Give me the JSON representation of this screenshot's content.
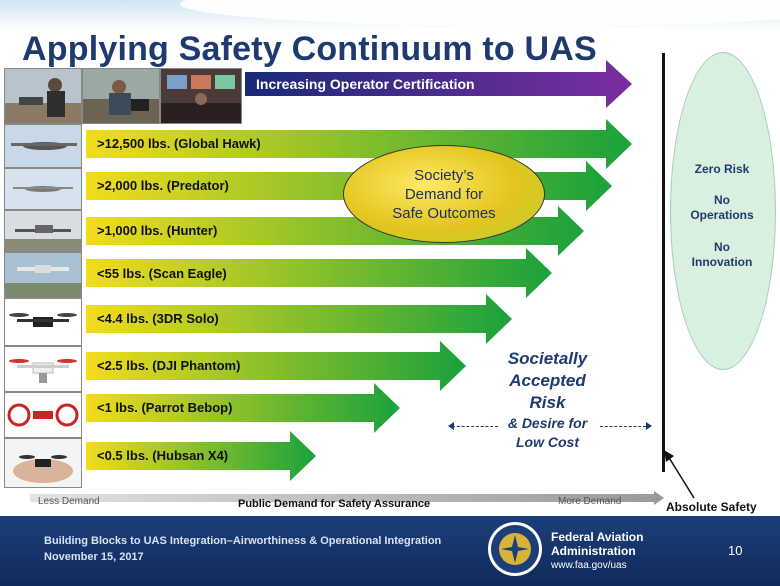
{
  "title": "Applying Safety Continuum to UAS",
  "certification_label": "Increasing Operator Certification",
  "aircraft": [
    {
      "label": ">12,500 lbs. (Global Hawk)"
    },
    {
      "label": ">2,000 lbs. (Predator)"
    },
    {
      "label": ">1,000 lbs. (Hunter)"
    },
    {
      "label": "<55 lbs. (Scan Eagle)"
    },
    {
      "label": "<4.4 lbs. (3DR Solo)"
    },
    {
      "label": "<2.5 lbs. (DJI Phantom)"
    },
    {
      "label": "<1 lbs. (Parrot Bebop)"
    },
    {
      "label": "<0.5 lbs. (Hubsan X4)"
    }
  ],
  "demand_oval": {
    "line1": "Society’s",
    "line2": "Demand for",
    "line3": "Safe Outcomes"
  },
  "zero_risk": {
    "line1": "Zero Risk",
    "line2a": "No",
    "line2b": "Operations",
    "line3a": "No",
    "line3b": "Innovation"
  },
  "risk_text": {
    "line1": "Societally",
    "line2": "Accepted",
    "line3": "Risk",
    "line4": "& Desire for",
    "line5": "Low Cost"
  },
  "axis": {
    "less": "Less Demand",
    "title": "Public Demand for Safety Assurance",
    "more": "More Demand"
  },
  "absolute_safety": "Absolute Safety",
  "footer": {
    "line1": "Building Blocks to UAS Integration–Airworthiness & Operational Integration",
    "line2": "November 15, 2017",
    "agency_line1": "Federal Aviation",
    "agency_line2": "Administration",
    "url": "www.faa.gov/uas",
    "page": "10"
  },
  "colors": {
    "title": "#1f3a6e",
    "arrow_start": "#f2dc1c",
    "arrow_end": "#1aa13c",
    "cert_arrow_start": "#1a2a78",
    "cert_arrow_end": "#7b2ea0",
    "footer": "#14336b",
    "zero_risk_oval": "#d9efe0"
  }
}
